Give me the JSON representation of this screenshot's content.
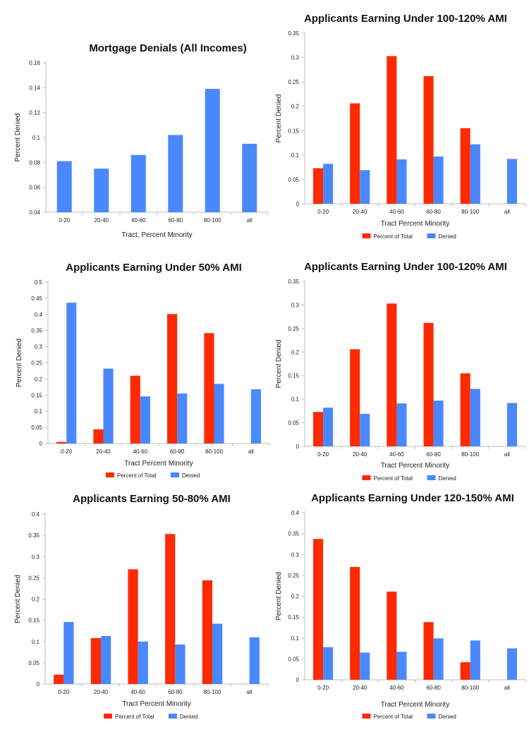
{
  "chart_data": [
    {
      "type": "bar",
      "title": "Mortgage Denials (All Incomes)",
      "xlabel": "Tract, Percent Minority",
      "ylabel": "Percent Denied",
      "ylim": [
        0.04,
        0.16
      ],
      "yticks": [
        "0.04",
        "0.06",
        "0.08",
        "0.1",
        "0.12",
        "0.14",
        "0.16"
      ],
      "categories": [
        "0-20",
        "20-40",
        "40-60",
        "60-80",
        "80-100",
        "all"
      ],
      "series": [
        {
          "name": "Denied",
          "color": "#4a88ff",
          "values": [
            0.081,
            0.075,
            0.086,
            0.102,
            0.139,
            0.095
          ]
        }
      ],
      "legend": []
    },
    {
      "type": "bar",
      "title": "Applicants Earning Under 100-120% AMI",
      "xlabel": "Tract Percent Minority",
      "ylabel": "Percent Denied",
      "ylim": [
        0,
        0.35
      ],
      "yticks": [
        "0",
        "0.05",
        "0.1",
        "0.15",
        "0.2",
        "0.25",
        "0.3",
        "0.35"
      ],
      "categories": [
        "0-20",
        "20-40",
        "40-60",
        "60-80",
        "80-100",
        "all"
      ],
      "series": [
        {
          "name": "Percent of Total",
          "color": "#ff2a00",
          "values": [
            0.073,
            0.206,
            0.303,
            0.262,
            0.155,
            null
          ]
        },
        {
          "name": "Denied",
          "color": "#4a88ff",
          "values": [
            0.082,
            0.069,
            0.091,
            0.097,
            0.122,
            0.092
          ]
        }
      ],
      "legend": [
        "Percent of Total",
        "Denied"
      ]
    },
    {
      "type": "bar",
      "title": "Applicants Earning Under 50% AMI",
      "xlabel": "Tract Percent Minority",
      "ylabel": "Percent Denied",
      "ylim": [
        0,
        0.5
      ],
      "yticks": [
        "0",
        "0.05",
        "0.1",
        "0.15",
        "0.2",
        "0.25",
        "0.3",
        "0.35",
        "0.4",
        "0.45",
        "0.5"
      ],
      "categories": [
        "0-20",
        "20-40",
        "40-60",
        "60-80",
        "80-100",
        "all"
      ],
      "series": [
        {
          "name": "Percent of Total",
          "color": "#ff2a00",
          "values": [
            0.005,
            0.044,
            0.21,
            0.401,
            0.342,
            null
          ]
        },
        {
          "name": "Denied",
          "color": "#4a88ff",
          "values": [
            0.436,
            0.232,
            0.146,
            0.155,
            0.185,
            0.168
          ]
        }
      ],
      "legend": [
        "Percent of Total",
        "Denied"
      ]
    },
    {
      "type": "bar",
      "title": "Applicants Earning Under 100-120% AMI",
      "xlabel": "Tract Percent Minority",
      "ylabel": "Percent Denied",
      "ylim": [
        0,
        0.35
      ],
      "yticks": [
        "0",
        "0.05",
        "0.1",
        "0.15",
        "0.2",
        "0.25",
        "0.3",
        "0.35"
      ],
      "categories": [
        "0-20",
        "20-40",
        "40-60",
        "60-80",
        "80-100",
        "all"
      ],
      "series": [
        {
          "name": "Percent of Total",
          "color": "#ff2a00",
          "values": [
            0.073,
            0.206,
            0.303,
            0.262,
            0.155,
            null
          ]
        },
        {
          "name": "Denied",
          "color": "#4a88ff",
          "values": [
            0.082,
            0.069,
            0.091,
            0.097,
            0.122,
            0.092
          ]
        }
      ],
      "legend": [
        "Percent of Total",
        "Denied"
      ]
    },
    {
      "type": "bar",
      "title": "Applicants Earning 50-80% AMI",
      "xlabel": "Tract Percent Minority",
      "ylabel": "Percent Denied",
      "ylim": [
        0,
        0.4
      ],
      "yticks": [
        "0",
        "0.05",
        "0.1",
        "0.15",
        "0.2",
        "0.25",
        "0.3",
        "0.35",
        "0.4"
      ],
      "categories": [
        "0-20",
        "20-40",
        "40-60",
        "60-80",
        "80-100",
        "all"
      ],
      "series": [
        {
          "name": "Percent of Total",
          "color": "#ff2a00",
          "values": [
            0.022,
            0.108,
            0.27,
            0.353,
            0.244,
            null
          ]
        },
        {
          "name": "Denied",
          "color": "#4a88ff",
          "values": [
            0.146,
            0.113,
            0.1,
            0.093,
            0.142,
            0.11
          ]
        }
      ],
      "legend": [
        "Percent of Total",
        "Denied"
      ]
    },
    {
      "type": "bar",
      "title": "Applicants Earning Under 120-150% AMI",
      "xlabel": "Tract Percent Minority",
      "ylabel": "Percent Denied",
      "ylim": [
        0,
        0.4
      ],
      "yticks": [
        "0",
        "0.05",
        "0.1",
        "0.15",
        "0.2",
        "0.25",
        "0.3",
        "0.35",
        "0.4"
      ],
      "categories": [
        "0-20",
        "20-40",
        "40-60",
        "60-80",
        "80-100",
        "all"
      ],
      "series": [
        {
          "name": "Percent of Total",
          "color": "#ff2a00",
          "values": [
            0.337,
            0.27,
            0.211,
            0.138,
            0.042,
            null
          ]
        },
        {
          "name": "Denied",
          "color": "#4a88ff",
          "values": [
            0.078,
            0.065,
            0.067,
            0.099,
            0.094,
            0.075
          ]
        }
      ],
      "legend": [
        "Percent of Total",
        "Denied"
      ]
    }
  ]
}
